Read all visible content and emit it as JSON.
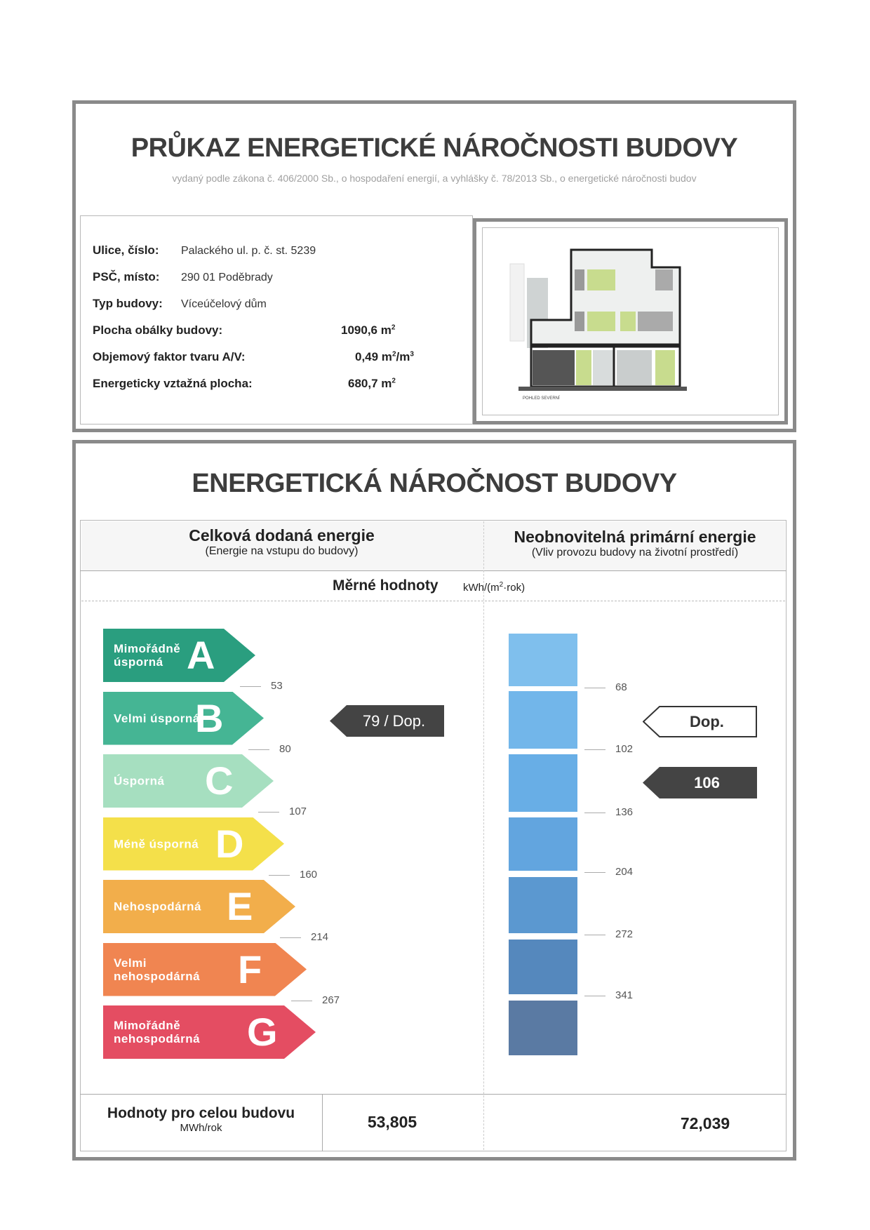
{
  "header": {
    "title": "PRŮKAZ ENERGETICKÉ NÁROČNOSTI BUDOVY",
    "subtitle": "vydaný podle zákona č. 406/2000 Sb., o hospodaření energií, a vyhlášky č. 78/2013 Sb., o energetické náročnosti budov"
  },
  "building": {
    "street_label": "Ulice, číslo:",
    "street_value": "Palackého ul. p. č. st. 5239",
    "city_label": "PSČ, místo:",
    "city_value": "290 01  Poděbrady",
    "type_label": "Typ budovy:",
    "type_value": "Víceúčelový dům",
    "envelope_label": "Plocha obálky budovy:",
    "envelope_value": "1090,6 m",
    "envelope_unit_sup": "2",
    "av_label": "Objemový faktor tvaru A/V:",
    "av_value": "0,49 m",
    "av_unit_sup1": "2",
    "av_unit_mid": "/m",
    "av_unit_sup2": "3",
    "area_label": "Energeticky vztažná plocha:",
    "area_value": "680,7 m",
    "area_unit_sup": "2",
    "drawing_caption": "POHLED SEVERNÍ"
  },
  "performance": {
    "title": "ENERGETICKÁ NÁROČNOST BUDOVY",
    "col1_title": "Celková dodaná energie",
    "col1_sub": "(Energie na vstupu do budovy)",
    "col2_title": "Neobnovitelná primární energie",
    "col2_sub": "(Vliv provozu budovy na životní prostředí)",
    "specific_label": "Měrné hodnoty",
    "specific_unit_pre": "kWh/(m",
    "specific_unit_sup": "2",
    "specific_unit_post": "·rok)",
    "classes": [
      {
        "letter": "A",
        "label": "Mimořádně úsporná",
        "color": "#2a9e7f"
      },
      {
        "letter": "B",
        "label": "Velmi úsporná",
        "color": "#45b594"
      },
      {
        "letter": "C",
        "label": "Úsporná",
        "color": "#a6dfc0"
      },
      {
        "letter": "D",
        "label": "Méně úsporná",
        "color": "#f4e04a"
      },
      {
        "letter": "E",
        "label": "Nehospodárná",
        "color": "#f2ae4b"
      },
      {
        "letter": "F",
        "label": "Velmi nehospodárná",
        "color": "#f08551"
      },
      {
        "letter": "G",
        "label": "Mimořádně nehospodárná",
        "color": "#e44d62"
      }
    ],
    "delivered_thresholds": [
      "53",
      "80",
      "107",
      "160",
      "214",
      "267"
    ],
    "delivered_indicator": "79 / Dop.",
    "primary_bar_colors": [
      "#7fbfed",
      "#72b6ea",
      "#68aee6",
      "#62a5df",
      "#5b98d0",
      "#5588bd",
      "#5a7aa3"
    ],
    "primary_thresholds": [
      "68",
      "102",
      "136",
      "204",
      "272",
      "341"
    ],
    "primary_reference": "Dop.",
    "primary_indicator": "106",
    "total_label": "Hodnoty pro celou budovu",
    "total_unit": "MWh/rok",
    "total_delivered": "53,805",
    "total_primary": "72,039"
  }
}
